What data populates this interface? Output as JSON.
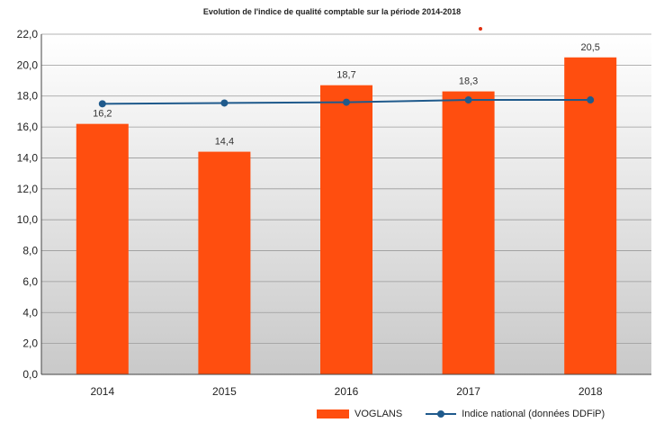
{
  "chart_data": {
    "type": "bar",
    "title": "Evolution de l'indice de qualité comptable sur la période 2014-2018",
    "categories": [
      "2014",
      "2015",
      "2016",
      "2017",
      "2018"
    ],
    "series": [
      {
        "name": "VOGLANS",
        "type": "bar",
        "color": "#ff4e0f",
        "values": [
          16.2,
          14.4,
          18.7,
          18.3,
          20.5
        ],
        "labels": [
          "16,2",
          "14,4",
          "18,7",
          "18,3",
          "20,5"
        ]
      },
      {
        "name": "Indice national (données DDFiP)",
        "type": "line",
        "color": "#1f5a8c",
        "values": [
          17.5,
          17.55,
          17.6,
          17.75,
          17.75
        ]
      }
    ],
    "ylim": [
      0,
      22
    ],
    "yticks": [
      "0,0",
      "2,0",
      "4,0",
      "6,0",
      "8,0",
      "10,0",
      "12,0",
      "14,0",
      "16,0",
      "18,0",
      "20,0",
      "22,0"
    ],
    "grid": true,
    "legend_position": "bottom"
  }
}
